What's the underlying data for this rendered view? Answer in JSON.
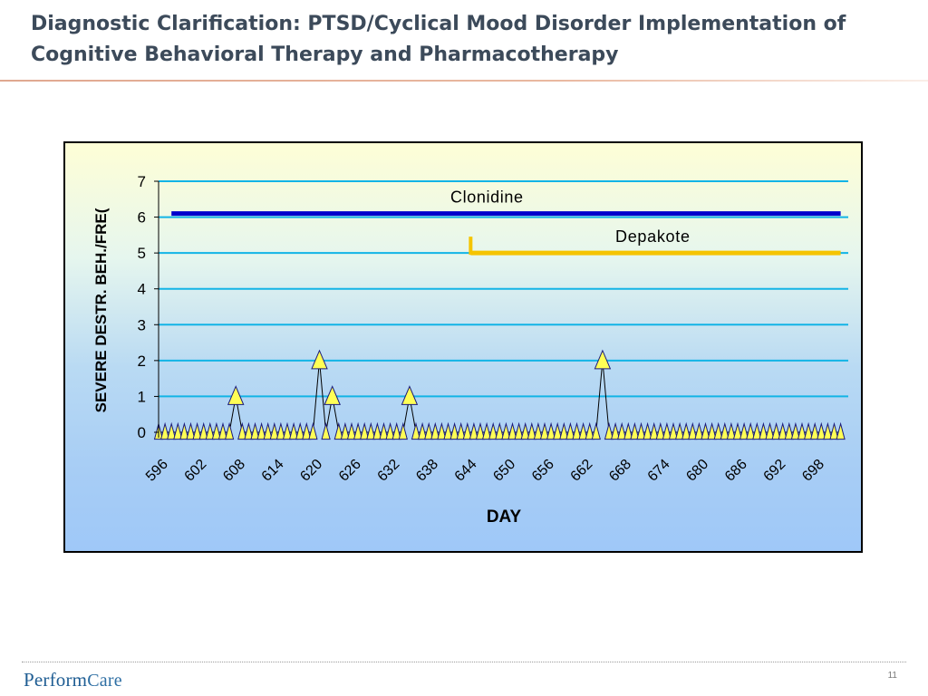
{
  "slide": {
    "title": "Diagnostic Clarification: PTSD/Cyclical Mood Disorder Implementation of Cognitive Behavioral Therapy and Pharmacotherapy",
    "logo_prefix": "Perform",
    "logo_suffix": "Care",
    "page_number": "11"
  },
  "chart_data": {
    "type": "line",
    "xlabel": "DAY",
    "ylabel": "SEVERE DESTR. BEH./FRE(",
    "xlim": [
      596,
      702
    ],
    "ylim": [
      0,
      7
    ],
    "y_ticks": [
      0,
      1,
      2,
      3,
      4,
      5,
      6,
      7
    ],
    "x_ticks": [
      596,
      602,
      608,
      614,
      620,
      626,
      632,
      638,
      644,
      650,
      656,
      662,
      668,
      674,
      680,
      686,
      692,
      698
    ],
    "grid": "horizontal",
    "series": [
      {
        "color": "#ffff55",
        "marker": "triangle",
        "x_start": 596,
        "x_end": 702,
        "nonzero": [
          {
            "x": 608,
            "y": 1
          },
          {
            "x": 621,
            "y": 2
          },
          {
            "x": 623,
            "y": 1
          },
          {
            "x": 635,
            "y": 1
          },
          {
            "x": 665,
            "y": 2
          }
        ]
      }
    ],
    "medications": [
      {
        "label": "Clonidine",
        "y": 6.1,
        "x_start": 598,
        "x_end": 702,
        "color": "#0000cc",
        "start_tick": false
      },
      {
        "label": "Depakote",
        "y": 5.0,
        "x_start": 644.5,
        "x_end": 702,
        "color": "#f5c400",
        "start_tick": true
      }
    ]
  }
}
